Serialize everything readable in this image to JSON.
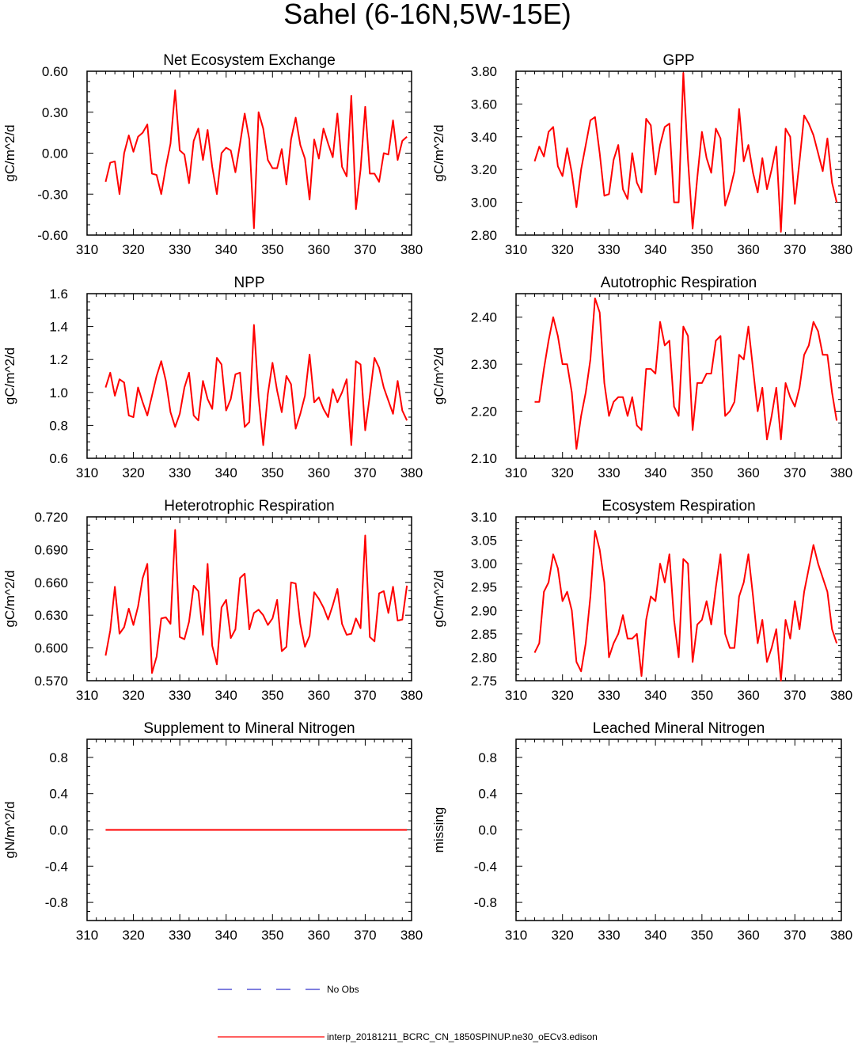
{
  "title": "Sahel (6-16N,5W-15E)",
  "legend": {
    "items": [
      {
        "label": "No Obs",
        "color": "#3333cc",
        "dash": true
      },
      {
        "label": "interp_20181211_BCRC_CN_1850SPINUP.ne30_oECv3.edison",
        "color": "#ff0000",
        "dash": false
      }
    ]
  },
  "chart_data": [
    {
      "type": "line",
      "title": "Net Ecosystem Exchange",
      "ylabel": "gC/m^2/d",
      "xlim": [
        310,
        380
      ],
      "ylim": [
        -0.6,
        0.6
      ],
      "yticks": [
        "-0.60",
        "-0.30",
        "0.00",
        "0.30",
        "0.60"
      ],
      "xticks": [
        "310",
        "320",
        "330",
        "340",
        "350",
        "360",
        "370",
        "380"
      ],
      "series": [
        {
          "color": "#ff0000",
          "x": [
            314,
            315,
            316,
            317,
            318,
            319,
            320,
            321,
            322,
            323,
            324,
            325,
            326,
            327,
            328,
            329,
            330,
            331,
            332,
            333,
            334,
            335,
            336,
            337,
            338,
            339,
            340,
            341,
            342,
            343,
            344,
            345,
            346,
            347,
            348,
            349,
            350,
            351,
            352,
            353,
            354,
            355,
            356,
            357,
            358,
            359,
            360,
            361,
            362,
            363,
            364,
            365,
            366,
            367,
            368,
            369,
            370,
            371,
            372,
            373,
            374,
            375,
            376,
            377,
            378,
            379
          ],
          "y": [
            -0.21,
            -0.07,
            -0.06,
            -0.3,
            0.0,
            0.13,
            0.01,
            0.12,
            0.15,
            0.21,
            -0.15,
            -0.16,
            -0.3,
            -0.1,
            0.07,
            0.46,
            0.02,
            -0.01,
            -0.22,
            0.09,
            0.18,
            -0.05,
            0.17,
            -0.1,
            -0.3,
            0.0,
            0.04,
            0.02,
            -0.14,
            0.07,
            0.29,
            0.1,
            -0.55,
            0.3,
            0.18,
            -0.05,
            -0.11,
            -0.11,
            0.03,
            -0.23,
            0.1,
            0.26,
            0.06,
            -0.04,
            -0.34,
            0.1,
            -0.04,
            0.18,
            0.07,
            -0.03,
            0.29,
            -0.1,
            -0.17,
            0.42,
            -0.41,
            -0.12,
            0.34,
            -0.15,
            -0.15,
            -0.21,
            0.0,
            -0.01,
            0.24,
            -0.05,
            0.09,
            0.12
          ]
        }
      ]
    },
    {
      "type": "line",
      "title": "GPP",
      "ylabel": "gC/m^2/d",
      "xlim": [
        310,
        380
      ],
      "ylim": [
        2.8,
        3.8
      ],
      "yticks": [
        "2.80",
        "3.00",
        "3.20",
        "3.40",
        "3.60",
        "3.80"
      ],
      "xticks": [
        "310",
        "320",
        "330",
        "340",
        "350",
        "360",
        "370",
        "380"
      ],
      "series": [
        {
          "color": "#ff0000",
          "x": [
            314,
            315,
            316,
            317,
            318,
            319,
            320,
            321,
            322,
            323,
            324,
            325,
            326,
            327,
            328,
            329,
            330,
            331,
            332,
            333,
            334,
            335,
            336,
            337,
            338,
            339,
            340,
            341,
            342,
            343,
            344,
            345,
            346,
            347,
            348,
            349,
            350,
            351,
            352,
            353,
            354,
            355,
            356,
            357,
            358,
            359,
            360,
            361,
            362,
            363,
            364,
            365,
            366,
            367,
            368,
            369,
            370,
            371,
            372,
            373,
            374,
            375,
            376,
            377,
            378,
            379
          ],
          "y": [
            3.25,
            3.34,
            3.28,
            3.43,
            3.46,
            3.22,
            3.16,
            3.33,
            3.18,
            2.97,
            3.2,
            3.35,
            3.5,
            3.52,
            3.3,
            3.04,
            3.05,
            3.26,
            3.35,
            3.08,
            3.02,
            3.3,
            3.12,
            3.06,
            3.51,
            3.47,
            3.17,
            3.35,
            3.46,
            3.48,
            3.0,
            3.0,
            3.79,
            3.26,
            2.84,
            3.15,
            3.43,
            3.27,
            3.18,
            3.45,
            3.39,
            2.98,
            3.07,
            3.19,
            3.57,
            3.25,
            3.35,
            3.18,
            3.06,
            3.27,
            3.08,
            3.2,
            3.34,
            2.82,
            3.45,
            3.4,
            2.99,
            3.25,
            3.53,
            3.48,
            3.41,
            3.3,
            3.19,
            3.39,
            3.12,
            3.0
          ]
        }
      ]
    },
    {
      "type": "line",
      "title": "NPP",
      "ylabel": "gC/m^2/d",
      "xlim": [
        310,
        380
      ],
      "ylim": [
        0.6,
        1.6
      ],
      "yticks": [
        "0.6",
        "0.8",
        "1.0",
        "1.2",
        "1.4",
        "1.6"
      ],
      "xticks": [
        "310",
        "320",
        "330",
        "340",
        "350",
        "360",
        "370",
        "380"
      ],
      "series": [
        {
          "color": "#ff0000",
          "x": [
            314,
            315,
            316,
            317,
            318,
            319,
            320,
            321,
            322,
            323,
            324,
            325,
            326,
            327,
            328,
            329,
            330,
            331,
            332,
            333,
            334,
            335,
            336,
            337,
            338,
            339,
            340,
            341,
            342,
            343,
            344,
            345,
            346,
            347,
            348,
            349,
            350,
            351,
            352,
            353,
            354,
            355,
            356,
            357,
            358,
            359,
            360,
            361,
            362,
            363,
            364,
            365,
            366,
            367,
            368,
            369,
            370,
            371,
            372,
            373,
            374,
            375,
            376,
            377,
            378,
            379
          ],
          "y": [
            1.03,
            1.12,
            0.98,
            1.08,
            1.06,
            0.86,
            0.85,
            1.03,
            0.94,
            0.86,
            0.98,
            1.1,
            1.19,
            1.07,
            0.88,
            0.79,
            0.87,
            1.03,
            1.12,
            0.86,
            0.83,
            1.07,
            0.96,
            0.9,
            1.21,
            1.17,
            0.89,
            0.96,
            1.11,
            1.12,
            0.79,
            0.82,
            1.41,
            0.97,
            0.68,
            0.99,
            1.18,
            1.01,
            0.88,
            1.1,
            1.05,
            0.78,
            0.87,
            0.98,
            1.23,
            0.94,
            0.97,
            0.9,
            0.85,
            1.02,
            0.94,
            1.0,
            1.08,
            0.68,
            1.19,
            1.17,
            0.77,
            0.98,
            1.21,
            1.15,
            1.03,
            0.95,
            0.87,
            1.07,
            0.89,
            0.83
          ]
        }
      ]
    },
    {
      "type": "line",
      "title": "Autotrophic Respiration",
      "ylabel": "gC/m^2/d",
      "xlim": [
        310,
        380
      ],
      "ylim": [
        2.1,
        2.45
      ],
      "yticks": [
        "2.10",
        "2.20",
        "2.30",
        "2.40"
      ],
      "xticks": [
        "310",
        "320",
        "330",
        "340",
        "350",
        "360",
        "370",
        "380"
      ],
      "series": [
        {
          "color": "#ff0000",
          "x": [
            314,
            315,
            316,
            317,
            318,
            319,
            320,
            321,
            322,
            323,
            324,
            325,
            326,
            327,
            328,
            329,
            330,
            331,
            332,
            333,
            334,
            335,
            336,
            337,
            338,
            339,
            340,
            341,
            342,
            343,
            344,
            345,
            346,
            347,
            348,
            349,
            350,
            351,
            352,
            353,
            354,
            355,
            356,
            357,
            358,
            359,
            360,
            361,
            362,
            363,
            364,
            365,
            366,
            367,
            368,
            369,
            370,
            371,
            372,
            373,
            374,
            375,
            376,
            377,
            378,
            379
          ],
          "y": [
            2.22,
            2.22,
            2.29,
            2.35,
            2.4,
            2.36,
            2.3,
            2.3,
            2.24,
            2.12,
            2.19,
            2.24,
            2.31,
            2.44,
            2.41,
            2.26,
            2.19,
            2.22,
            2.23,
            2.23,
            2.19,
            2.23,
            2.17,
            2.16,
            2.29,
            2.29,
            2.28,
            2.39,
            2.34,
            2.35,
            2.21,
            2.19,
            2.38,
            2.36,
            2.16,
            2.26,
            2.26,
            2.28,
            2.28,
            2.35,
            2.36,
            2.19,
            2.2,
            2.22,
            2.32,
            2.31,
            2.38,
            2.29,
            2.2,
            2.25,
            2.14,
            2.19,
            2.25,
            2.14,
            2.26,
            2.23,
            2.21,
            2.25,
            2.32,
            2.34,
            2.39,
            2.37,
            2.32,
            2.32,
            2.24,
            2.18
          ]
        }
      ]
    },
    {
      "type": "line",
      "title": "Heterotrophic Respiration",
      "ylabel": "gC/m^2/d",
      "xlim": [
        310,
        380
      ],
      "ylim": [
        0.57,
        0.72
      ],
      "yticks": [
        "0.570",
        "0.600",
        "0.630",
        "0.660",
        "0.690",
        "0.720"
      ],
      "xticks": [
        "310",
        "320",
        "330",
        "340",
        "350",
        "360",
        "370",
        "380"
      ],
      "series": [
        {
          "color": "#ff0000",
          "x": [
            314,
            315,
            316,
            317,
            318,
            319,
            320,
            321,
            322,
            323,
            324,
            325,
            326,
            327,
            328,
            329,
            330,
            331,
            332,
            333,
            334,
            335,
            336,
            337,
            338,
            339,
            340,
            341,
            342,
            343,
            344,
            345,
            346,
            347,
            348,
            349,
            350,
            351,
            352,
            353,
            354,
            355,
            356,
            357,
            358,
            359,
            360,
            361,
            362,
            363,
            364,
            365,
            366,
            367,
            368,
            369,
            370,
            371,
            372,
            373,
            374,
            375,
            376,
            377,
            378,
            379
          ],
          "y": [
            0.593,
            0.616,
            0.656,
            0.613,
            0.619,
            0.636,
            0.621,
            0.638,
            0.664,
            0.677,
            0.577,
            0.592,
            0.627,
            0.628,
            0.622,
            0.708,
            0.61,
            0.608,
            0.624,
            0.657,
            0.652,
            0.612,
            0.677,
            0.602,
            0.585,
            0.637,
            0.644,
            0.609,
            0.617,
            0.664,
            0.668,
            0.617,
            0.632,
            0.635,
            0.63,
            0.621,
            0.627,
            0.644,
            0.597,
            0.601,
            0.66,
            0.659,
            0.622,
            0.601,
            0.611,
            0.651,
            0.645,
            0.637,
            0.626,
            0.639,
            0.654,
            0.622,
            0.612,
            0.613,
            0.627,
            0.618,
            0.703,
            0.61,
            0.606,
            0.65,
            0.652,
            0.632,
            0.656,
            0.625,
            0.626,
            0.657
          ]
        }
      ]
    },
    {
      "type": "line",
      "title": "Ecosystem Respiration",
      "ylabel": "gC/m^2/d",
      "xlim": [
        310,
        380
      ],
      "ylim": [
        2.75,
        3.1
      ],
      "yticks": [
        "2.75",
        "2.80",
        "2.85",
        "2.90",
        "2.95",
        "3.00",
        "3.05",
        "3.10"
      ],
      "xticks": [
        "310",
        "320",
        "330",
        "340",
        "350",
        "360",
        "370",
        "380"
      ],
      "series": [
        {
          "color": "#ff0000",
          "x": [
            314,
            315,
            316,
            317,
            318,
            319,
            320,
            321,
            322,
            323,
            324,
            325,
            326,
            327,
            328,
            329,
            330,
            331,
            332,
            333,
            334,
            335,
            336,
            337,
            338,
            339,
            340,
            341,
            342,
            343,
            344,
            345,
            346,
            347,
            348,
            349,
            350,
            351,
            352,
            353,
            354,
            355,
            356,
            357,
            358,
            359,
            360,
            361,
            362,
            363,
            364,
            365,
            366,
            367,
            368,
            369,
            370,
            371,
            372,
            373,
            374,
            375,
            376,
            377,
            378,
            379
          ],
          "y": [
            2.81,
            2.83,
            2.94,
            2.96,
            3.02,
            2.99,
            2.92,
            2.94,
            2.9,
            2.79,
            2.77,
            2.83,
            2.93,
            3.07,
            3.03,
            2.96,
            2.8,
            2.83,
            2.85,
            2.89,
            2.84,
            2.84,
            2.85,
            2.76,
            2.88,
            2.93,
            2.92,
            3.0,
            2.96,
            3.02,
            2.88,
            2.8,
            3.01,
            3.0,
            2.79,
            2.87,
            2.88,
            2.92,
            2.87,
            2.95,
            3.02,
            2.85,
            2.82,
            2.82,
            2.93,
            2.96,
            3.02,
            2.93,
            2.83,
            2.88,
            2.79,
            2.82,
            2.86,
            2.75,
            2.88,
            2.84,
            2.92,
            2.86,
            2.94,
            2.99,
            3.04,
            3.0,
            2.97,
            2.94,
            2.86,
            2.83
          ]
        }
      ]
    },
    {
      "type": "line",
      "title": "Supplement to Mineral Nitrogen",
      "ylabel": "gN/m^2/d",
      "xlim": [
        310,
        380
      ],
      "ylim": [
        -1.0,
        1.0
      ],
      "yticks": [
        "-0.8",
        "-0.4",
        "0.0",
        "0.4",
        "0.8"
      ],
      "ytick_values": [
        -0.8,
        -0.4,
        0.0,
        0.4,
        0.8
      ],
      "xticks": [
        "310",
        "320",
        "330",
        "340",
        "350",
        "360",
        "370",
        "380"
      ],
      "series": [
        {
          "color": "#ff0000",
          "x": [
            314,
            379
          ],
          "y": [
            0.0,
            0.0
          ]
        }
      ]
    },
    {
      "type": "line",
      "title": "Leached Mineral Nitrogen",
      "ylabel": "missing",
      "xlim": [
        310,
        380
      ],
      "ylim": [
        -1.0,
        1.0
      ],
      "yticks": [
        "-0.8",
        "-0.4",
        "0.0",
        "0.4",
        "0.8"
      ],
      "ytick_values": [
        -0.8,
        -0.4,
        0.0,
        0.4,
        0.8
      ],
      "xticks": [
        "310",
        "320",
        "330",
        "340",
        "350",
        "360",
        "370",
        "380"
      ],
      "series": []
    }
  ]
}
